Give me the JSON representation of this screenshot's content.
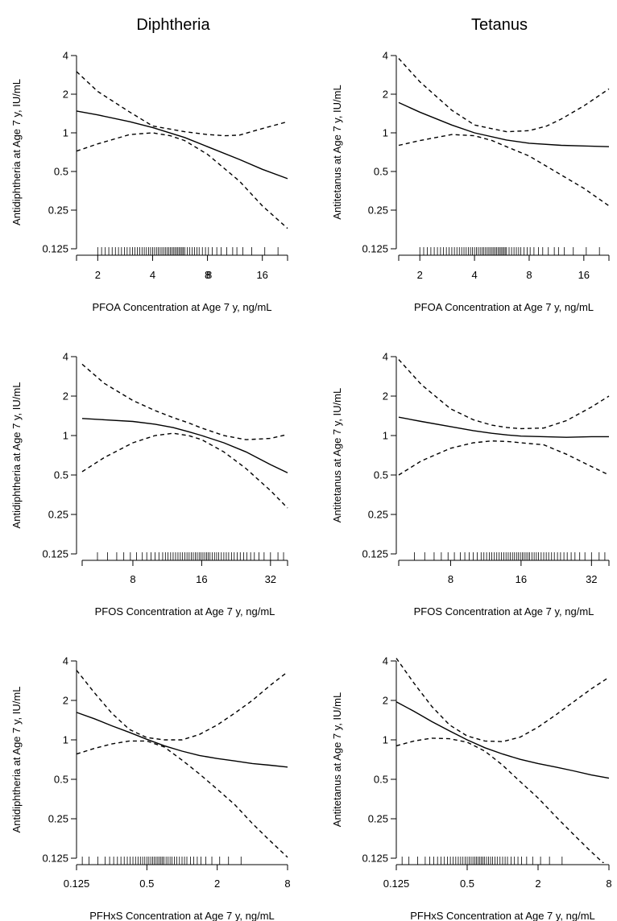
{
  "column_titles": [
    "Diphtheria",
    "Tetanus"
  ],
  "chart_data": [
    {
      "type": "line",
      "title": "Diphtheria",
      "xlabel": "PFOA Concentration at Age 7 y, ng/mL",
      "ylabel": "Antidiphtheria at Age 7 y, IU/mL",
      "x_scale": "log2",
      "y_scale": "log2",
      "xlim": [
        1.53,
        22
      ],
      "ylim": [
        0.125,
        4
      ],
      "x_ticks": [
        "2",
        "4",
        "8",
        "16"
      ],
      "x_tick_note": "overlapping '8' drawn over '8'",
      "y_ticks": [
        "0.125",
        "0.25",
        "0.5",
        "1",
        "2",
        "4"
      ],
      "series": [
        {
          "style": "solid",
          "x": [
            1.53,
            2,
            3,
            4,
            6,
            8,
            12,
            16,
            22
          ],
          "y": [
            1.48,
            1.38,
            1.22,
            1.1,
            0.92,
            0.78,
            0.62,
            0.52,
            0.44
          ]
        },
        {
          "style": "dashed",
          "x": [
            1.53,
            2,
            3,
            4,
            6,
            8,
            10,
            12,
            16,
            22
          ],
          "y": [
            3.0,
            2.1,
            1.45,
            1.13,
            1.02,
            0.97,
            0.95,
            0.96,
            1.08,
            1.22
          ]
        },
        {
          "style": "dashed",
          "x": [
            1.53,
            2,
            3,
            4,
            5,
            6,
            8,
            12,
            16,
            22
          ],
          "y": [
            0.72,
            0.82,
            0.97,
            1.0,
            0.95,
            0.87,
            0.68,
            0.42,
            0.27,
            0.18
          ]
        }
      ],
      "rug": [
        2.0,
        2.1,
        2.2,
        2.3,
        2.4,
        2.5,
        2.6,
        2.7,
        2.8,
        2.9,
        3.0,
        3.1,
        3.2,
        3.3,
        3.4,
        3.5,
        3.6,
        3.7,
        3.8,
        3.9,
        4.0,
        4.1,
        4.2,
        4.3,
        4.4,
        4.5,
        4.6,
        4.7,
        4.8,
        4.9,
        5.0,
        5.1,
        5.2,
        5.3,
        5.4,
        5.5,
        5.6,
        5.7,
        5.8,
        5.9,
        6.0,
        6.2,
        6.4,
        6.6,
        6.8,
        7.0,
        7.2,
        7.5,
        7.8,
        8.1,
        8.5,
        9.0,
        9.5,
        10.2,
        11.0,
        11.6,
        12.5,
        14.0,
        16.5,
        19.5
      ]
    },
    {
      "type": "line",
      "title": "Tetanus",
      "xlabel": "PFOA Concentration at Age 7 y, ng/mL",
      "ylabel": "Antitetanus at Age 7 y, IU/mL",
      "x_scale": "log2",
      "y_scale": "log2",
      "xlim": [
        1.53,
        22
      ],
      "ylim": [
        0.125,
        4
      ],
      "x_ticks": [
        "2",
        "4",
        "8",
        "16"
      ],
      "y_ticks": [
        "0.125",
        "0.25",
        "0.5",
        "1",
        "2",
        "4"
      ],
      "series": [
        {
          "style": "solid",
          "x": [
            1.53,
            2,
            3,
            4,
            6,
            8,
            12,
            16,
            22
          ],
          "y": [
            1.72,
            1.45,
            1.15,
            1.0,
            0.88,
            0.83,
            0.8,
            0.79,
            0.78
          ]
        },
        {
          "style": "dashed",
          "x": [
            1.53,
            2,
            3,
            4,
            6,
            8,
            10,
            12,
            16,
            22
          ],
          "y": [
            3.8,
            2.5,
            1.5,
            1.15,
            1.02,
            1.04,
            1.13,
            1.28,
            1.62,
            2.2
          ]
        },
        {
          "style": "dashed",
          "x": [
            1.53,
            2,
            3,
            4,
            5,
            6,
            8,
            12,
            16,
            22
          ],
          "y": [
            0.8,
            0.87,
            0.97,
            0.95,
            0.87,
            0.78,
            0.66,
            0.47,
            0.37,
            0.27
          ]
        }
      ],
      "rug": [
        2.0,
        2.1,
        2.2,
        2.3,
        2.4,
        2.5,
        2.6,
        2.7,
        2.8,
        2.9,
        3.0,
        3.1,
        3.2,
        3.3,
        3.4,
        3.5,
        3.6,
        3.7,
        3.8,
        3.9,
        4.0,
        4.1,
        4.2,
        4.3,
        4.4,
        4.5,
        4.6,
        4.7,
        4.8,
        4.9,
        5.0,
        5.1,
        5.2,
        5.3,
        5.4,
        5.5,
        5.6,
        5.7,
        5.8,
        5.9,
        6.0,
        6.2,
        6.4,
        6.6,
        6.8,
        7.0,
        7.2,
        7.5,
        7.8,
        8.1,
        8.5,
        9.0,
        9.5,
        10.2,
        11.0,
        11.6,
        12.5,
        14.0,
        16.5,
        19.5
      ]
    },
    {
      "type": "line",
      "title": "",
      "xlabel": "PFOS Concentration at Age 7 y, ng/mL",
      "ylabel": "Antidiphtheria at Age 7 y, IU/mL",
      "x_scale": "log2",
      "y_scale": "log2",
      "xlim": [
        4.8,
        38
      ],
      "ylim": [
        0.125,
        4
      ],
      "x_ticks": [
        "8",
        "16",
        "32"
      ],
      "y_ticks": [
        "0.125",
        "0.25",
        "0.5",
        "1",
        "2",
        "4"
      ],
      "series": [
        {
          "style": "solid",
          "x": [
            4.8,
            6,
            8,
            10,
            12,
            14,
            16,
            20,
            25,
            32,
            38
          ],
          "y": [
            1.35,
            1.32,
            1.28,
            1.22,
            1.15,
            1.07,
            1.0,
            0.88,
            0.75,
            0.6,
            0.52
          ]
        },
        {
          "style": "dashed",
          "x": [
            4.8,
            6,
            8,
            10,
            12,
            14,
            16,
            20,
            25,
            32,
            38
          ],
          "y": [
            3.5,
            2.5,
            1.85,
            1.55,
            1.37,
            1.25,
            1.14,
            1.0,
            0.93,
            0.95,
            1.02
          ]
        },
        {
          "style": "dashed",
          "x": [
            4.8,
            6,
            8,
            10,
            12,
            14,
            16,
            20,
            25,
            32,
            38
          ],
          "y": [
            0.53,
            0.68,
            0.88,
            1.0,
            1.04,
            1.0,
            0.93,
            0.75,
            0.56,
            0.38,
            0.28
          ]
        }
      ],
      "rug": [
        5.6,
        6.2,
        6.8,
        7.3,
        7.8,
        8.3,
        8.8,
        9.2,
        9.6,
        10.0,
        10.4,
        10.8,
        11.1,
        11.4,
        11.7,
        12.0,
        12.3,
        12.6,
        12.9,
        13.2,
        13.5,
        13.8,
        14.1,
        14.4,
        14.7,
        15.0,
        15.3,
        15.6,
        15.9,
        16.2,
        16.5,
        16.8,
        17.1,
        17.4,
        17.8,
        18.2,
        18.6,
        19.0,
        19.5,
        20.0,
        20.5,
        21.0,
        21.6,
        22.2,
        22.9,
        23.6,
        24.4,
        25.2,
        26.2,
        27.2,
        28.5,
        30.0,
        32.0,
        34.5,
        36.5
      ]
    },
    {
      "type": "line",
      "title": "",
      "xlabel": "PFOS Concentration at Age 7 y, ng/mL",
      "ylabel": "Antitetanus at Age 7 y, IU/mL",
      "x_scale": "log2",
      "y_scale": "log2",
      "xlim": [
        4.8,
        38
      ],
      "ylim": [
        0.125,
        4
      ],
      "x_ticks": [
        "8",
        "16",
        "32"
      ],
      "y_ticks": [
        "0.125",
        "0.25",
        "0.5",
        "1",
        "2",
        "4"
      ],
      "series": [
        {
          "style": "solid",
          "x": [
            4.8,
            6,
            8,
            10,
            12,
            14,
            16,
            20,
            25,
            32,
            38
          ],
          "y": [
            1.38,
            1.28,
            1.17,
            1.09,
            1.04,
            1.01,
            0.99,
            0.98,
            0.97,
            0.98,
            0.98
          ]
        },
        {
          "style": "dashed",
          "x": [
            4.8,
            6,
            8,
            10,
            12,
            14,
            16,
            20,
            25,
            32,
            38
          ],
          "y": [
            3.8,
            2.45,
            1.6,
            1.32,
            1.2,
            1.15,
            1.13,
            1.14,
            1.3,
            1.65,
            2.0
          ]
        },
        {
          "style": "dashed",
          "x": [
            4.8,
            6,
            8,
            10,
            12,
            14,
            16,
            20,
            25,
            32,
            38
          ],
          "y": [
            0.5,
            0.64,
            0.8,
            0.88,
            0.91,
            0.9,
            0.88,
            0.85,
            0.72,
            0.58,
            0.5
          ]
        }
      ],
      "rug": [
        5.6,
        6.2,
        6.8,
        7.3,
        7.8,
        8.3,
        8.8,
        9.2,
        9.6,
        10.0,
        10.4,
        10.8,
        11.1,
        11.4,
        11.7,
        12.0,
        12.3,
        12.6,
        12.9,
        13.2,
        13.5,
        13.8,
        14.1,
        14.4,
        14.7,
        15.0,
        15.3,
        15.6,
        15.9,
        16.2,
        16.5,
        16.8,
        17.1,
        17.4,
        17.8,
        18.2,
        18.6,
        19.0,
        19.5,
        20.0,
        20.5,
        21.0,
        21.6,
        22.2,
        22.9,
        23.6,
        24.4,
        25.2,
        26.2,
        27.2,
        28.5,
        30.0,
        32.0,
        34.5,
        36.5
      ]
    },
    {
      "type": "line",
      "title": "",
      "xlabel": "PFHxS Concentration at Age 7 y, ng/mL",
      "ylabel": "Antidiphtheria at Age 7 y, IU/mL",
      "x_scale": "log2",
      "y_scale": "log2",
      "xlim": [
        0.125,
        8
      ],
      "ylim": [
        0.125,
        4
      ],
      "x_ticks": [
        "0.125",
        "0.5",
        "2",
        "8"
      ],
      "y_ticks": [
        "0.125",
        "0.25",
        "0.5",
        "1",
        "2",
        "4"
      ],
      "series": [
        {
          "style": "solid",
          "x": [
            0.125,
            0.177,
            0.25,
            0.354,
            0.5,
            0.707,
            1,
            1.41,
            2,
            2.83,
            4,
            5.66,
            8
          ],
          "y": [
            1.62,
            1.45,
            1.28,
            1.14,
            1.01,
            0.9,
            0.82,
            0.76,
            0.72,
            0.69,
            0.66,
            0.64,
            0.62
          ]
        },
        {
          "style": "dashed",
          "x": [
            0.125,
            0.177,
            0.25,
            0.354,
            0.5,
            0.707,
            1,
            1.41,
            2,
            2.83,
            4,
            5.66,
            8
          ],
          "y": [
            3.4,
            2.3,
            1.6,
            1.2,
            1.04,
            1.0,
            1.0,
            1.1,
            1.3,
            1.6,
            2.0,
            2.6,
            3.3
          ]
        },
        {
          "style": "dashed",
          "x": [
            0.125,
            0.177,
            0.25,
            0.354,
            0.5,
            0.707,
            1,
            1.41,
            2,
            2.83,
            4,
            5.66,
            8
          ],
          "y": [
            0.78,
            0.86,
            0.93,
            0.98,
            0.98,
            0.88,
            0.7,
            0.55,
            0.42,
            0.32,
            0.23,
            0.17,
            0.127
          ]
        }
      ],
      "rug": [
        0.14,
        0.16,
        0.19,
        0.22,
        0.24,
        0.26,
        0.28,
        0.3,
        0.32,
        0.34,
        0.36,
        0.38,
        0.4,
        0.42,
        0.44,
        0.46,
        0.48,
        0.5,
        0.52,
        0.54,
        0.56,
        0.58,
        0.6,
        0.62,
        0.64,
        0.66,
        0.68,
        0.7,
        0.73,
        0.76,
        0.79,
        0.82,
        0.86,
        0.9,
        0.95,
        1.0,
        1.05,
        1.1,
        1.18,
        1.26,
        1.35,
        1.45,
        1.6,
        1.8,
        2.1,
        2.5,
        3.2
      ]
    },
    {
      "type": "line",
      "title": "",
      "xlabel": "PFHxS Concentration at Age 7 y, ng/mL",
      "ylabel": "Antitetanus at Age 7 y, IU/mL",
      "x_scale": "log2",
      "y_scale": "log2",
      "xlim": [
        0.125,
        8
      ],
      "ylim": [
        0.125,
        4
      ],
      "x_ticks": [
        "0.125",
        "0.5",
        "2",
        "8"
      ],
      "y_ticks": [
        "0.125",
        "0.25",
        "0.5",
        "1",
        "2",
        "4"
      ],
      "series": [
        {
          "style": "solid",
          "x": [
            0.125,
            0.177,
            0.25,
            0.354,
            0.5,
            0.707,
            1,
            1.41,
            2,
            2.83,
            4,
            5.66,
            8
          ],
          "y": [
            1.95,
            1.65,
            1.38,
            1.17,
            1.0,
            0.87,
            0.78,
            0.71,
            0.66,
            0.62,
            0.58,
            0.54,
            0.51
          ]
        },
        {
          "style": "dashed",
          "x": [
            0.125,
            0.177,
            0.25,
            0.354,
            0.5,
            0.707,
            1,
            1.41,
            2,
            2.83,
            4,
            5.66,
            8
          ],
          "y": [
            4.2,
            2.7,
            1.8,
            1.3,
            1.07,
            0.98,
            0.97,
            1.05,
            1.25,
            1.55,
            1.95,
            2.45,
            3.0
          ]
        },
        {
          "style": "dashed",
          "x": [
            0.125,
            0.177,
            0.25,
            0.354,
            0.5,
            0.707,
            1,
            1.41,
            2,
            2.83,
            4,
            5.66,
            8
          ],
          "y": [
            0.9,
            0.98,
            1.03,
            1.02,
            0.96,
            0.82,
            0.64,
            0.48,
            0.36,
            0.26,
            0.19,
            0.14,
            0.105
          ]
        }
      ],
      "rug": [
        0.14,
        0.16,
        0.19,
        0.22,
        0.24,
        0.26,
        0.28,
        0.3,
        0.32,
        0.34,
        0.36,
        0.38,
        0.4,
        0.42,
        0.44,
        0.46,
        0.48,
        0.5,
        0.52,
        0.54,
        0.56,
        0.58,
        0.6,
        0.62,
        0.64,
        0.66,
        0.68,
        0.7,
        0.73,
        0.76,
        0.79,
        0.82,
        0.86,
        0.9,
        0.95,
        1.0,
        1.05,
        1.1,
        1.18,
        1.26,
        1.35,
        1.45,
        1.6,
        1.8,
        2.1,
        2.5,
        3.2
      ]
    }
  ]
}
